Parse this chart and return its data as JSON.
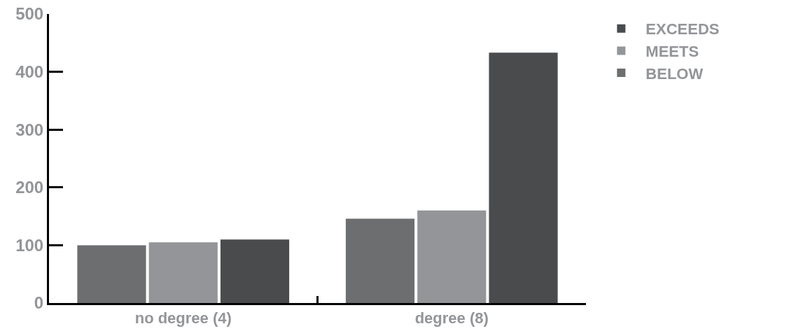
{
  "chart_data": {
    "type": "bar",
    "categories": [
      "no degree (4)",
      "degree (8)"
    ],
    "series": [
      {
        "name": "BELOW",
        "color": "#6d6e70",
        "values": [
          100,
          146
        ]
      },
      {
        "name": "MEETS",
        "color": "#939598",
        "values": [
          105,
          160
        ]
      },
      {
        "name": "EXCEEDS",
        "color": "#4a4b4d",
        "values": [
          110,
          433
        ]
      }
    ],
    "ylim": [
      0,
      500
    ],
    "yticks": [
      0,
      100,
      200,
      300,
      400,
      500
    ],
    "grid": false,
    "legend": "top right"
  }
}
